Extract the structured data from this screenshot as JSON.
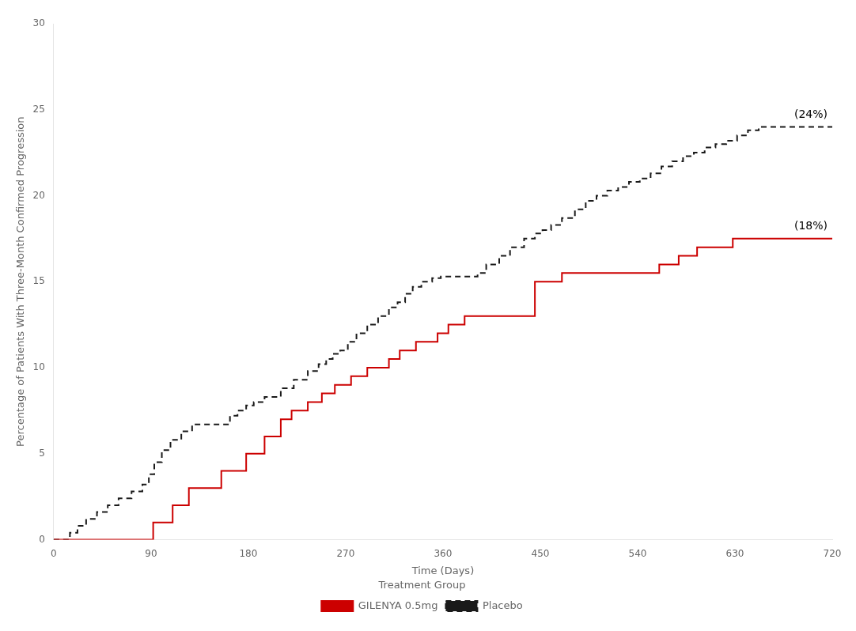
{
  "chart_data": {
    "type": "step",
    "x_label": "Time (Days)",
    "y_label": "Percentage of Patients With Three-Month Confirmed Progression",
    "xlim": [
      0,
      720
    ],
    "ylim": [
      0,
      30
    ],
    "xticks": [
      0,
      90,
      180,
      270,
      360,
      450,
      540,
      630,
      720
    ],
    "yticks": [
      0,
      5,
      10,
      15,
      20,
      25,
      30
    ],
    "grid": false,
    "legend": "bottom",
    "legend_title": "Treatment Group",
    "series": [
      {
        "name": "GILENYA 0.5mg",
        "color": "#cc0000",
        "line_style": "solid",
        "annotation": "(18%)",
        "x": [
          0,
          88,
          92,
          100,
          110,
          125,
          140,
          155,
          170,
          178,
          183,
          195,
          210,
          220,
          235,
          248,
          260,
          275,
          290,
          310,
          320,
          335,
          355,
          365,
          380,
          395,
          410,
          430,
          445,
          455,
          470,
          490,
          510,
          525,
          545,
          560,
          578,
          595,
          612,
          628,
          645,
          660,
          720
        ],
        "values": [
          0,
          0,
          1,
          1,
          2,
          3,
          3,
          4,
          4,
          5,
          5,
          6,
          7,
          7.5,
          8,
          8.5,
          9,
          9.5,
          10,
          10.5,
          11,
          11.5,
          12,
          12.5,
          13,
          13,
          13,
          13,
          15,
          15,
          15.5,
          15.5,
          15.5,
          15.5,
          15.5,
          16,
          16.5,
          17,
          17,
          17.5,
          17.5,
          17.5,
          17.5
        ]
      },
      {
        "name": "Placebo",
        "color": "#1a1a1a",
        "line_style": "dashed",
        "annotation": "(24%)",
        "x": [
          0,
          15,
          22,
          30,
          40,
          50,
          60,
          72,
          82,
          88,
          93,
          100,
          108,
          118,
          128,
          138,
          148,
          158,
          163,
          170,
          178,
          185,
          195,
          210,
          222,
          235,
          245,
          252,
          258,
          265,
          272,
          280,
          290,
          300,
          310,
          318,
          325,
          332,
          340,
          350,
          358,
          365,
          375,
          385,
          392,
          400,
          412,
          422,
          435,
          445,
          452,
          460,
          470,
          482,
          492,
          502,
          512,
          522,
          532,
          542,
          552,
          562,
          572,
          582,
          592,
          602,
          612,
          622,
          632,
          642,
          652,
          660,
          672,
          685,
          700,
          715,
          720
        ],
        "values": [
          0,
          0.4,
          0.8,
          1.2,
          1.6,
          2.0,
          2.4,
          2.8,
          3.2,
          3.8,
          4.5,
          5.2,
          5.8,
          6.3,
          6.7,
          6.7,
          6.7,
          6.7,
          7.2,
          7.5,
          7.8,
          8.0,
          8.3,
          8.8,
          9.3,
          9.8,
          10.2,
          10.5,
          10.8,
          11.0,
          11.5,
          12.0,
          12.5,
          13.0,
          13.5,
          13.8,
          14.3,
          14.7,
          15.0,
          15.2,
          15.3,
          15.3,
          15.3,
          15.3,
          15.5,
          16.0,
          16.5,
          17.0,
          17.5,
          17.8,
          18.0,
          18.3,
          18.7,
          19.2,
          19.7,
          20.0,
          20.3,
          20.5,
          20.8,
          21.0,
          21.3,
          21.7,
          22.0,
          22.3,
          22.5,
          22.8,
          23.0,
          23.2,
          23.5,
          23.8,
          24.0,
          24.0,
          24.0,
          24.0,
          24.0,
          24.0,
          24.0
        ]
      }
    ]
  }
}
